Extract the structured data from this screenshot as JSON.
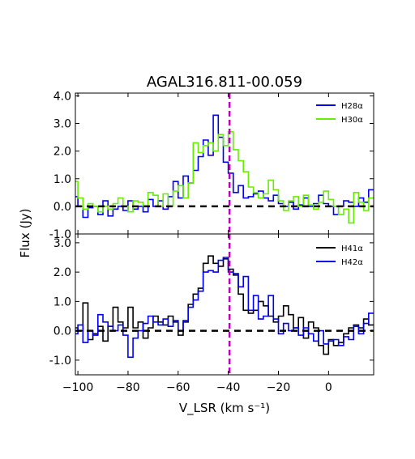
{
  "chart_data": [
    {
      "type": "line",
      "title": "AGAL316.811-00.059",
      "xlabel": "V_LSR (km s⁻¹)",
      "ylabel": "Flux (Jy)",
      "xlim": [
        -101,
        18
      ],
      "ylim": [
        -1.0,
        4.1
      ],
      "yticks": [
        "4.0",
        "3.0",
        "2.0",
        "1.0",
        "0.0",
        "-1.0"
      ],
      "reference_velocity": -39.5,
      "baseline": 0.0,
      "legend_position": "top-right",
      "series": [
        {
          "name": "H28α",
          "color": "#0000ee",
          "step": true,
          "x": [
            -101,
            -99,
            -97,
            -95,
            -93,
            -91,
            -89,
            -87,
            -85,
            -83,
            -81,
            -79,
            -77,
            -75,
            -73,
            -71,
            -69,
            -67,
            -65,
            -63,
            -61,
            -59,
            -57,
            -55,
            -53,
            -51,
            -49,
            -47,
            -45,
            -43,
            -41,
            -39,
            -37,
            -35,
            -33,
            -31,
            -29,
            -27,
            -25,
            -23,
            -21,
            -19,
            -17,
            -15,
            -13,
            -11,
            -9,
            -7,
            -5,
            -3,
            -1,
            1,
            3,
            5,
            7,
            9,
            11,
            13,
            15,
            17
          ],
          "y": [
            0.35,
            0.0,
            -0.4,
            -0.05,
            0.0,
            -0.3,
            0.2,
            -0.35,
            -0.1,
            0.0,
            -0.15,
            0.2,
            -0.1,
            0.0,
            -0.2,
            0.25,
            0.0,
            0.2,
            -0.1,
            0.35,
            0.9,
            0.3,
            1.1,
            0.85,
            1.3,
            1.8,
            2.4,
            1.85,
            3.3,
            2.5,
            1.6,
            1.2,
            0.5,
            0.75,
            0.3,
            0.35,
            0.45,
            0.55,
            0.3,
            0.2,
            0.4,
            0.1,
            0.0,
            0.15,
            -0.1,
            0.05,
            0.3,
            0.0,
            0.1,
            0.4,
            0.1,
            0.0,
            -0.3,
            0.0,
            0.2,
            0.15,
            0.0,
            0.3,
            0.15,
            0.6
          ]
        },
        {
          "name": "H30α",
          "color": "#66ee00",
          "step": true,
          "x": [
            -101,
            -99,
            -97,
            -95,
            -93,
            -91,
            -89,
            -87,
            -85,
            -83,
            -81,
            -79,
            -77,
            -75,
            -73,
            -71,
            -69,
            -67,
            -65,
            -63,
            -61,
            -59,
            -57,
            -55,
            -53,
            -51,
            -49,
            -47,
            -45,
            -43,
            -41,
            -39,
            -37,
            -35,
            -33,
            -31,
            -29,
            -27,
            -25,
            -23,
            -21,
            -19,
            -17,
            -15,
            -13,
            -11,
            -9,
            -7,
            -5,
            -3,
            -1,
            1,
            3,
            5,
            7,
            9,
            11,
            13,
            15,
            17
          ],
          "y": [
            0.9,
            0.3,
            -0.1,
            0.1,
            0.0,
            -0.2,
            0.0,
            -0.1,
            0.1,
            0.3,
            0.0,
            -0.2,
            0.2,
            0.15,
            0.0,
            0.5,
            0.4,
            0.0,
            0.45,
            0.0,
            0.55,
            0.75,
            0.3,
            0.85,
            2.3,
            1.95,
            2.2,
            2.3,
            2.0,
            2.6,
            2.2,
            2.7,
            2.05,
            1.65,
            1.25,
            0.7,
            0.5,
            0.3,
            0.45,
            0.95,
            0.6,
            0.2,
            -0.15,
            0.2,
            0.35,
            0.0,
            0.4,
            0.05,
            -0.1,
            0.15,
            0.55,
            0.25,
            0.0,
            -0.3,
            -0.1,
            -0.6,
            0.5,
            0.15,
            -0.15,
            0.3
          ]
        }
      ]
    },
    {
      "type": "line",
      "xlabel": "V_LSR (km s⁻¹)",
      "ylabel": "Flux (Jy)",
      "xlim": [
        -101,
        18
      ],
      "ylim": [
        -1.5,
        3.3
      ],
      "xticks": [
        "−100",
        "−80",
        "−60",
        "−40",
        "−20",
        "0"
      ],
      "yticks": [
        "3.0",
        "2.0",
        "1.0",
        "0.0",
        "-1.0"
      ],
      "reference_velocity": -39.5,
      "baseline": 0.0,
      "legend_position": "top-right",
      "series": [
        {
          "name": "H41α",
          "color": "#000000",
          "step": true,
          "x": [
            -101,
            -99,
            -97,
            -95,
            -93,
            -91,
            -89,
            -87,
            -85,
            -83,
            -81,
            -79,
            -77,
            -75,
            -73,
            -71,
            -69,
            -67,
            -65,
            -63,
            -61,
            -59,
            -57,
            -55,
            -53,
            -51,
            -49,
            -47,
            -45,
            -43,
            -41,
            -39,
            -37,
            -35,
            -33,
            -31,
            -29,
            -27,
            -25,
            -23,
            -21,
            -19,
            -17,
            -15,
            -13,
            -11,
            -9,
            -7,
            -5,
            -3,
            -1,
            1,
            3,
            5,
            7,
            9,
            11,
            13,
            15,
            17
          ],
          "y": [
            0.1,
            0.0,
            0.95,
            -0.3,
            -0.1,
            0.15,
            -0.35,
            0.15,
            0.8,
            0.3,
            0.1,
            0.8,
            0.1,
            0.3,
            -0.25,
            0.1,
            0.5,
            0.3,
            0.2,
            0.5,
            0.3,
            -0.15,
            0.3,
            0.9,
            1.25,
            1.45,
            2.3,
            2.55,
            2.3,
            2.2,
            2.45,
            2.1,
            1.9,
            1.25,
            0.7,
            0.6,
            0.7,
            1.0,
            0.85,
            0.5,
            0.3,
            0.5,
            0.85,
            0.55,
            0.1,
            0.45,
            -0.25,
            0.3,
            0.1,
            -0.5,
            -0.8,
            -0.3,
            -0.5,
            -0.4,
            -0.1,
            0.1,
            0.2,
            0.1,
            0.4,
            0.2
          ]
        },
        {
          "name": "H42α",
          "color": "#0000ee",
          "step": true,
          "x": [
            -101,
            -99,
            -97,
            -95,
            -93,
            -91,
            -89,
            -87,
            -85,
            -83,
            -81,
            -79,
            -77,
            -75,
            -73,
            -71,
            -69,
            -67,
            -65,
            -63,
            -61,
            -59,
            -57,
            -55,
            -53,
            -51,
            -49,
            -47,
            -45,
            -43,
            -41,
            -39,
            -37,
            -35,
            -33,
            -31,
            -29,
            -27,
            -25,
            -23,
            -21,
            -19,
            -17,
            -15,
            -13,
            -11,
            -9,
            -7,
            -5,
            -3,
            -1,
            1,
            3,
            5,
            7,
            9,
            11,
            13,
            15,
            17
          ],
          "y": [
            -0.1,
            0.2,
            -0.4,
            0.0,
            -0.15,
            0.55,
            0.3,
            0.15,
            0.0,
            0.2,
            -0.15,
            -0.9,
            -0.25,
            0.0,
            0.25,
            0.5,
            0.3,
            0.2,
            0.4,
            0.15,
            0.35,
            0.0,
            0.35,
            0.8,
            1.05,
            1.35,
            2.0,
            2.05,
            2.0,
            2.4,
            2.5,
            2.0,
            1.95,
            1.5,
            1.85,
            0.7,
            1.2,
            0.4,
            0.5,
            1.2,
            0.4,
            -0.1,
            0.25,
            0.0,
            0.1,
            -0.15,
            0.1,
            -0.1,
            -0.35,
            0.0,
            -0.45,
            -0.35,
            -0.3,
            -0.5,
            -0.2,
            -0.3,
            0.15,
            -0.1,
            0.25,
            0.6
          ]
        }
      ]
    }
  ]
}
